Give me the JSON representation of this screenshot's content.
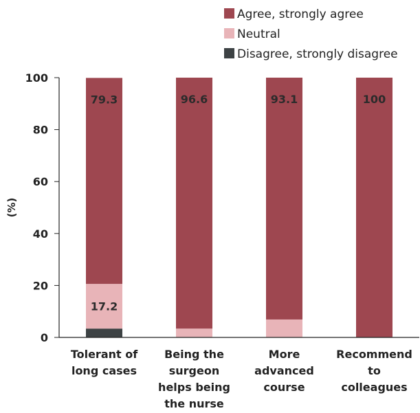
{
  "chart_data": {
    "type": "bar",
    "stacked": true,
    "categories": [
      [
        "Tolerant of",
        "long cases"
      ],
      [
        "Being the",
        "surgeon",
        "helps being",
        "the nurse"
      ],
      [
        "More",
        "advanced",
        "course"
      ],
      [
        "Recommend",
        "to",
        "colleagues"
      ]
    ],
    "series": [
      {
        "name": "Disagree, strongly disagree",
        "values": [
          3.4,
          0,
          0,
          0
        ],
        "color": "#3d4244"
      },
      {
        "name": "Neutral",
        "values": [
          17.2,
          3.4,
          6.9,
          0
        ],
        "color": "#e8b4b8"
      },
      {
        "name": "Agree, strongly agree",
        "values": [
          79.3,
          96.6,
          93.1,
          100
        ],
        "color": "#9e4750"
      }
    ],
    "data_labels": [
      {
        "category": 0,
        "series": 2,
        "text": "79.3"
      },
      {
        "category": 1,
        "series": 2,
        "text": "96.6"
      },
      {
        "category": 2,
        "series": 2,
        "text": "93.1"
      },
      {
        "category": 3,
        "series": 2,
        "text": "100"
      },
      {
        "category": 0,
        "series": 1,
        "text": "17.2"
      }
    ],
    "legend_order": [
      2,
      1,
      0
    ],
    "legend_position": "top-right",
    "ylabel": "(%)",
    "xlabel": "",
    "ylim": [
      0,
      100
    ],
    "yticks": [
      0,
      20,
      40,
      60,
      80,
      100
    ],
    "grid": false
  }
}
